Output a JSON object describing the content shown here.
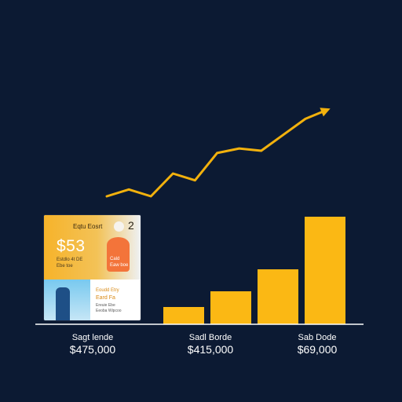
{
  "chart_data": {
    "type": "bar",
    "categories": [
      "Sagt lende",
      "Sadl Borde",
      "Sab Dode"
    ],
    "values": [
      475000,
      415000,
      69000
    ],
    "category_value_labels": [
      "$475,000",
      "$415,000",
      "$69,000"
    ],
    "bars": [
      22,
      42,
      70,
      137
    ],
    "trend_line": [
      0,
      3,
      0,
      10,
      7,
      19,
      21,
      20,
      27,
      34,
      38
    ],
    "colors": {
      "bar": "#fbb814",
      "line": "#f2b10d",
      "baseline": "#ffffff",
      "background": "#0c1a33"
    }
  },
  "card": {
    "title": "Eqtu Eosrt",
    "badge_number": "2",
    "value": "$53",
    "sub_line1": "Estdlo 4t DE",
    "sub_line2": "Ebe toe",
    "orange_line1": "Cald",
    "orange_line2": "Eaw boe",
    "bottom_line1": "Eoudd Etry",
    "bottom_line2": "Eard Fa",
    "small_line1": "Ereuie Ebe",
    "small_line2": "Eeoba Wipcoo"
  }
}
